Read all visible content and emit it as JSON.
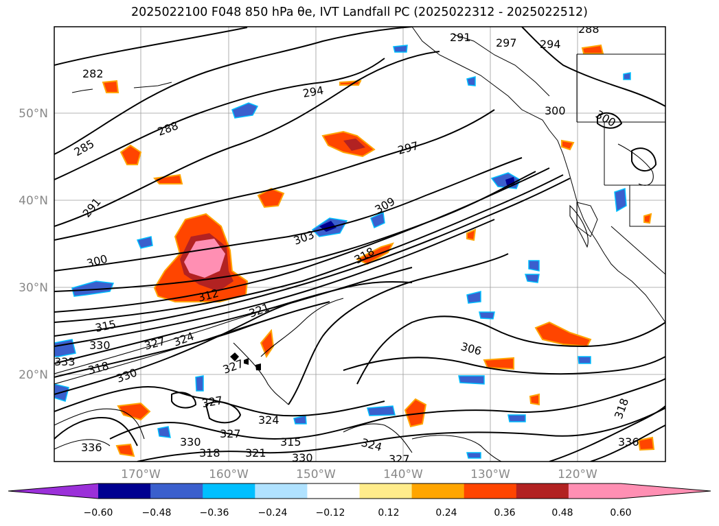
{
  "title": "2025022100 F048 850 hPa θe, IVT Landfall PC (2025022312 - 2025022512)",
  "map": {
    "lat_labels": [
      "50°N",
      "40°N",
      "30°N",
      "20°N"
    ],
    "lon_labels": [
      "170°W",
      "160°W",
      "150°W",
      "140°W",
      "130°W",
      "120°W"
    ],
    "contour_labels": [
      "282",
      "285",
      "288",
      "291",
      "294",
      "297",
      "300",
      "303",
      "309",
      "312",
      "315",
      "318",
      "321",
      "324",
      "327",
      "330",
      "333",
      "336",
      "306",
      "300",
      "294",
      "297",
      "291",
      "288"
    ]
  },
  "colorbar": {
    "colors": [
      "#9b30d9",
      "#000090",
      "#3a5fcd",
      "#00bfff",
      "#b0e2ff",
      "#ffffff",
      "#ffec8b",
      "#ffa500",
      "#ff4500",
      "#b22222",
      "#ff8fb3",
      "#ff8fb3"
    ],
    "tick_labels": [
      "−0.60",
      "−0.48",
      "−0.36",
      "−0.24",
      "−0.12",
      "0.12",
      "0.24",
      "0.36",
      "0.48",
      "0.60"
    ]
  }
}
